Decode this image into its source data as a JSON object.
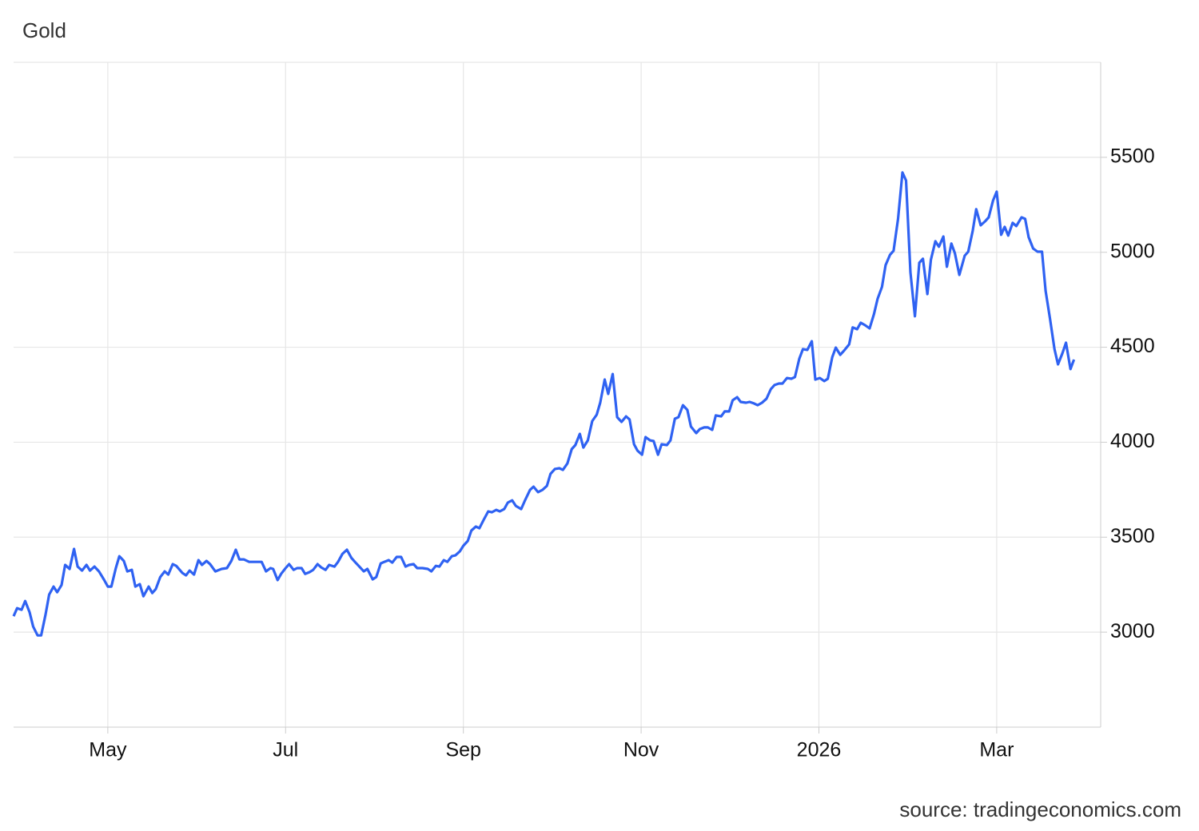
{
  "chart_data": {
    "type": "line",
    "title": "Gold",
    "source": "source: tradingeconomics.com",
    "color": "#2f62f2",
    "grid": true,
    "xlim": [
      3.94,
      16.17
    ],
    "ylim": [
      2500,
      6000
    ],
    "xticks": [
      {
        "value": 5,
        "label": "May"
      },
      {
        "value": 7,
        "label": "Jul"
      },
      {
        "value": 9,
        "label": "Sep"
      },
      {
        "value": 11,
        "label": "Nov"
      },
      {
        "value": 13,
        "label": "2026"
      },
      {
        "value": 15,
        "label": "Mar"
      }
    ],
    "yticks": [
      3000,
      3500,
      4000,
      4500,
      5000,
      5500
    ],
    "x": [
      3.94,
      3.98,
      4.03,
      4.07,
      4.12,
      4.16,
      4.21,
      4.25,
      4.3,
      4.34,
      4.39,
      4.43,
      4.48,
      4.52,
      4.57,
      4.62,
      4.66,
      4.71,
      4.76,
      4.8,
      4.85,
      4.9,
      4.96,
      5.0,
      5.04,
      5.09,
      5.13,
      5.18,
      5.22,
      5.27,
      5.31,
      5.36,
      5.4,
      5.46,
      5.5,
      5.54,
      5.59,
      5.64,
      5.68,
      5.73,
      5.77,
      5.84,
      5.88,
      5.92,
      5.97,
      6.02,
      6.06,
      6.11,
      6.15,
      6.21,
      6.28,
      6.34,
      6.39,
      6.44,
      6.48,
      6.53,
      6.59,
      6.66,
      6.73,
      6.78,
      6.83,
      6.86,
      6.91,
      6.95,
      7.0,
      7.04,
      7.09,
      7.13,
      7.18,
      7.22,
      7.27,
      7.31,
      7.36,
      7.4,
      7.45,
      7.49,
      7.55,
      7.59,
      7.64,
      7.69,
      7.74,
      7.78,
      7.83,
      7.88,
      7.92,
      7.98,
      8.02,
      8.07,
      8.11,
      8.16,
      8.2,
      8.25,
      8.3,
      8.35,
      8.39,
      8.44,
      8.48,
      8.54,
      8.6,
      8.64,
      8.69,
      8.73,
      8.78,
      8.82,
      8.87,
      8.91,
      8.96,
      9.0,
      9.05,
      9.09,
      9.14,
      9.18,
      9.23,
      9.28,
      9.32,
      9.37,
      9.41,
      9.46,
      9.5,
      9.55,
      9.59,
      9.65,
      9.69,
      9.75,
      9.79,
      9.84,
      9.89,
      9.94,
      9.98,
      10.03,
      10.08,
      10.12,
      10.17,
      10.22,
      10.26,
      10.31,
      10.35,
      10.4,
      10.45,
      10.5,
      10.54,
      10.59,
      10.63,
      10.68,
      10.73,
      10.78,
      10.83,
      10.87,
      10.92,
      10.96,
      11.01,
      11.05,
      11.1,
      11.14,
      11.19,
      11.23,
      11.29,
      11.33,
      11.38,
      11.42,
      11.47,
      11.52,
      11.56,
      11.62,
      11.66,
      11.71,
      11.75,
      11.8,
      11.84,
      11.9,
      11.94,
      11.99,
      12.03,
      12.08,
      12.12,
      12.18,
      12.22,
      12.27,
      12.31,
      12.36,
      12.41,
      12.46,
      12.5,
      12.55,
      12.59,
      12.64,
      12.69,
      12.73,
      12.78,
      12.82,
      12.87,
      12.92,
      12.96,
      13.01,
      13.06,
      13.1,
      13.15,
      13.19,
      13.24,
      13.29,
      13.34,
      13.38,
      13.43,
      13.47,
      13.52,
      13.57,
      13.62,
      13.66,
      13.71,
      13.75,
      13.8,
      13.84,
      13.89,
      13.94,
      13.98,
      14.03,
      14.08,
      14.13,
      14.17,
      14.22,
      14.26,
      14.31,
      14.35,
      14.4,
      14.44,
      14.49,
      14.53,
      14.58,
      14.64,
      14.68,
      14.73,
      14.77,
      14.82,
      14.87,
      14.91,
      14.96,
      15.0,
      15.05,
      15.09,
      15.13,
      15.18,
      15.22,
      15.28,
      15.32,
      15.36,
      15.41,
      15.46,
      15.51,
      15.55,
      15.6,
      15.65,
      15.69,
      15.74,
      15.78,
      15.83,
      15.87
    ],
    "values": [
      3084,
      3126,
      3118,
      3164,
      3105,
      3029,
      2983,
      2983,
      3093,
      3198,
      3240,
      3210,
      3248,
      3354,
      3333,
      3438,
      3345,
      3324,
      3354,
      3324,
      3345,
      3320,
      3274,
      3240,
      3240,
      3337,
      3400,
      3375,
      3320,
      3328,
      3240,
      3253,
      3189,
      3240,
      3206,
      3227,
      3290,
      3320,
      3303,
      3358,
      3349,
      3311,
      3299,
      3324,
      3303,
      3379,
      3354,
      3375,
      3358,
      3320,
      3333,
      3337,
      3375,
      3434,
      3383,
      3383,
      3370,
      3370,
      3370,
      3320,
      3337,
      3333,
      3274,
      3307,
      3337,
      3358,
      3328,
      3337,
      3337,
      3307,
      3316,
      3328,
      3358,
      3341,
      3328,
      3354,
      3345,
      3370,
      3412,
      3434,
      3391,
      3370,
      3345,
      3320,
      3333,
      3278,
      3290,
      3362,
      3370,
      3379,
      3366,
      3396,
      3396,
      3345,
      3354,
      3358,
      3337,
      3337,
      3333,
      3320,
      3349,
      3345,
      3379,
      3370,
      3400,
      3404,
      3425,
      3455,
      3480,
      3535,
      3556,
      3547,
      3593,
      3636,
      3631,
      3644,
      3636,
      3648,
      3682,
      3694,
      3665,
      3648,
      3690,
      3749,
      3766,
      3737,
      3749,
      3770,
      3833,
      3859,
      3863,
      3854,
      3888,
      3964,
      3985,
      4044,
      3972,
      4010,
      4111,
      4145,
      4208,
      4330,
      4254,
      4359,
      4132,
      4107,
      4136,
      4120,
      3989,
      3955,
      3934,
      4027,
      4010,
      4006,
      3934,
      3989,
      3985,
      4010,
      4124,
      4132,
      4195,
      4170,
      4082,
      4048,
      4069,
      4078,
      4078,
      4065,
      4141,
      4136,
      4162,
      4162,
      4221,
      4237,
      4212,
      4208,
      4212,
      4204,
      4195,
      4208,
      4229,
      4280,
      4301,
      4309,
      4309,
      4338,
      4334,
      4343,
      4440,
      4490,
      4486,
      4532,
      4330,
      4338,
      4322,
      4334,
      4448,
      4498,
      4460,
      4486,
      4515,
      4604,
      4595,
      4629,
      4616,
      4599,
      4675,
      4755,
      4818,
      4932,
      4987,
      5008,
      5176,
      5420,
      5378,
      4894,
      4663,
      4945,
      4966,
      4780,
      4961,
      5058,
      5029,
      5083,
      4924,
      5046,
      4995,
      4881,
      4982,
      5003,
      5113,
      5227,
      5142,
      5163,
      5184,
      5273,
      5319,
      5092,
      5134,
      5088,
      5155,
      5138,
      5184,
      5176,
      5079,
      5020,
      5003,
      5003,
      4797,
      4650,
      4490,
      4410,
      4469,
      4524,
      4385,
      4435
    ]
  }
}
